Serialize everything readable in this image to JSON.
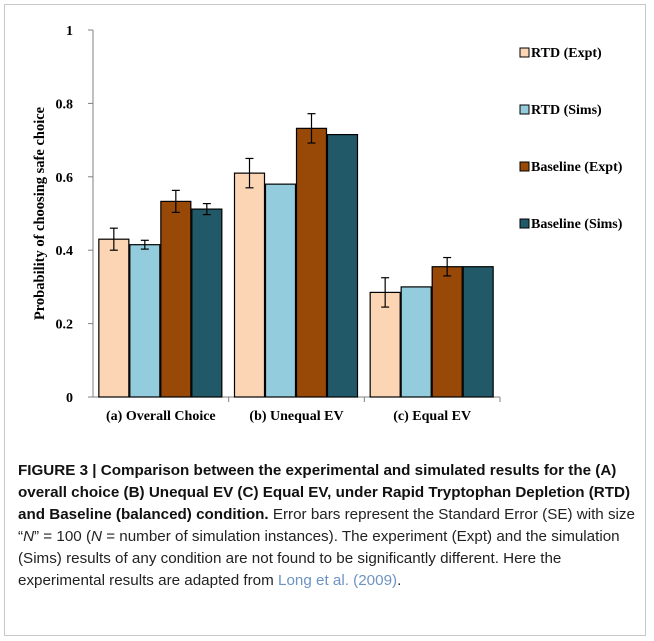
{
  "chart_data": {
    "type": "bar",
    "categories": [
      "(a) Overall Choice",
      "(b) Unequal EV",
      "(c) Equal EV"
    ],
    "ylabel": "Probability of choosing safe choice",
    "xlabel": "",
    "ylim": [
      0,
      1
    ],
    "yticks": [
      "0",
      "0.2",
      "0.4",
      "0.6",
      "0.8",
      "1"
    ],
    "grid": false,
    "legend_placement": "right",
    "series": [
      {
        "name": "RTD (Expt)",
        "color": "#fcd5b5",
        "values": [
          0.43,
          0.61,
          0.285
        ],
        "errors": [
          0.03,
          0.04,
          0.04
        ]
      },
      {
        "name": "RTD (Sims)",
        "color": "#93cddd",
        "values": [
          0.415,
          0.58,
          0.3
        ],
        "errors": [
          0.012,
          null,
          null
        ]
      },
      {
        "name": "Baseline (Expt)",
        "color": "#984807",
        "values": [
          0.533,
          0.732,
          0.355
        ],
        "errors": [
          0.03,
          0.04,
          0.025
        ]
      },
      {
        "name": "Baseline (Sims)",
        "color": "#215968",
        "values": [
          0.512,
          0.715,
          0.355
        ],
        "errors": [
          0.015,
          null,
          null
        ]
      }
    ]
  },
  "caption": {
    "title": "FIGURE 3 | Comparison between the experimental and simulated results for the (A) overall choice (B) Unequal EV (C) Equal EV, under Rapid Tryptophan Depletion (RTD) and Baseline (balanced) condition.",
    "body_a": " Error bars represent the Standard Error (SE) with size “",
    "n_italic_1": "N",
    "body_b": "” = 100 (",
    "n_italic_2": "N",
    "body_c": " = number of simulation instances). The experiment (Expt) and the simulation (Sims) results of any condition are not found to be significantly different. Here the experimental results are adapted from ",
    "citation": "Long et al. (2009)",
    "body_end": "."
  }
}
